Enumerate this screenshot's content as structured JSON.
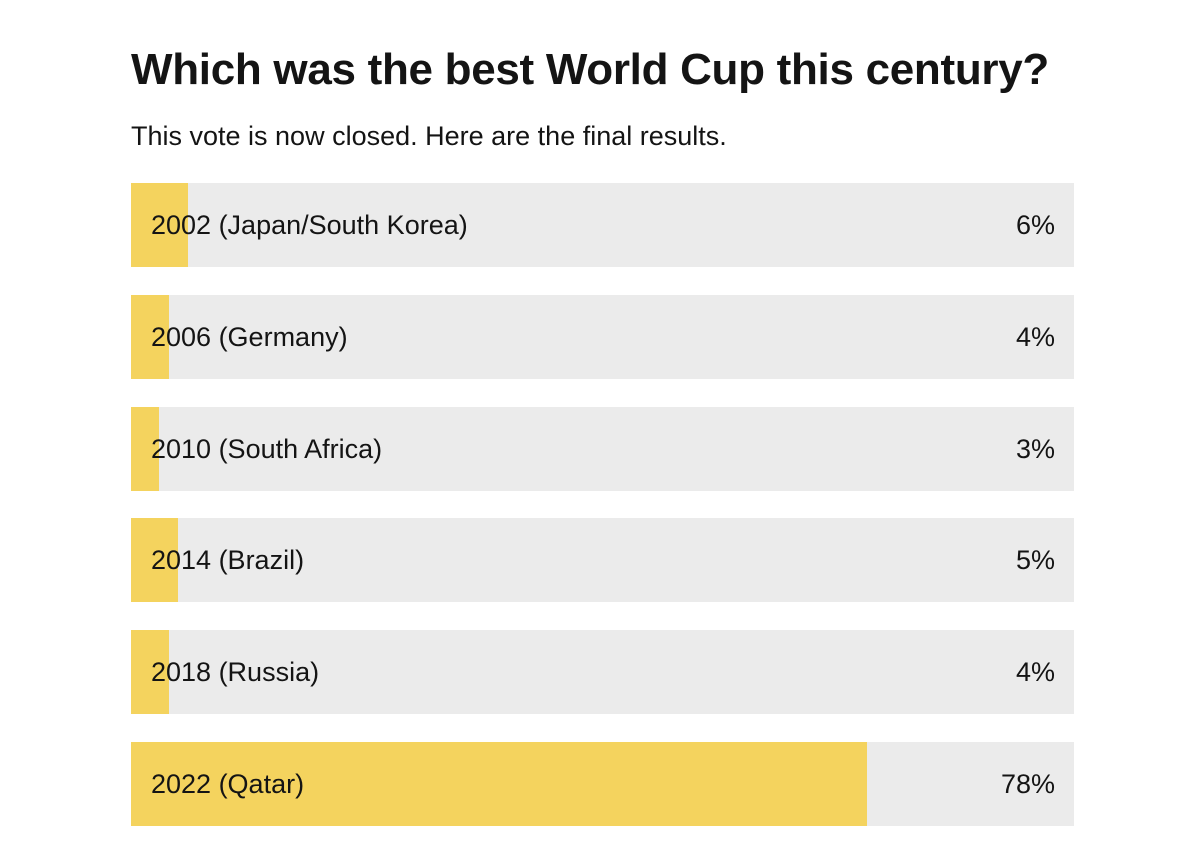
{
  "poll": {
    "title": "Which was the best World Cup this century?",
    "subtitle": "This vote is now closed. Here are the final results."
  },
  "colors": {
    "bar_fill": "#f4d35e",
    "bar_track": "#ebebeb",
    "text": "#141414"
  },
  "chart_data": {
    "type": "bar",
    "orientation": "horizontal",
    "title": "Which was the best World Cup this century?",
    "subtitle": "This vote is now closed. Here are the final results.",
    "categories": [
      "2002 (Japan/South Korea)",
      "2006 (Germany)",
      "2010 (South Africa)",
      "2014 (Brazil)",
      "2018 (Russia)",
      "2022 (Qatar)"
    ],
    "values": [
      6,
      4,
      3,
      5,
      4,
      78
    ],
    "value_labels": [
      "6%",
      "4%",
      "3%",
      "5%",
      "4%",
      "78%"
    ],
    "unit": "%",
    "xlim": [
      0,
      100
    ],
    "grid": false,
    "legend": "none"
  }
}
